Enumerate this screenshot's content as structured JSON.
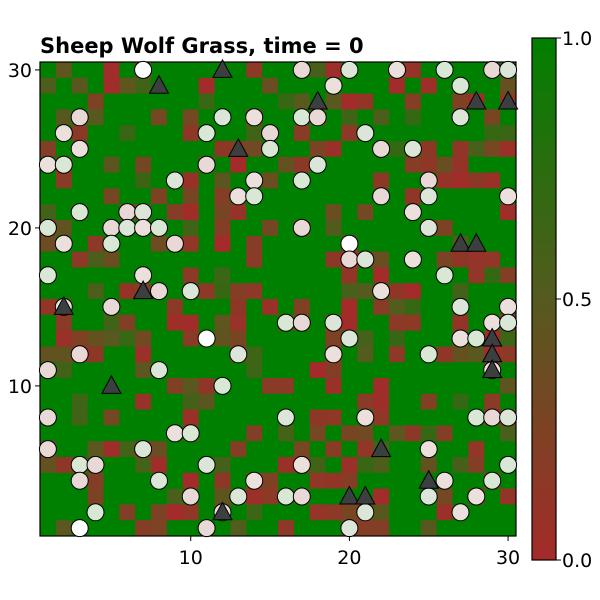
{
  "chart_data": {
    "type": "heatmap",
    "title": "Sheep Wolf Grass, time = 0",
    "xlabel": "",
    "ylabel": "",
    "xlim": [
      0.5,
      30.5
    ],
    "ylim": [
      0.5,
      30.5
    ],
    "x_ticks": [
      "10",
      "20",
      "30"
    ],
    "y_ticks": [
      "10",
      "20",
      "30"
    ],
    "colorbar": {
      "range": [
        0.0,
        1.0
      ],
      "ticks": [
        "0.0",
        "0.5",
        "1.0"
      ],
      "colors": {
        "low": "#a52a2a",
        "high": "#008000"
      }
    },
    "grid": false,
    "grass_grid_size": 30,
    "grass_note_fully_grown_value": 1.0,
    "sheep": [
      [
        7,
        30
      ],
      [
        17,
        30
      ],
      [
        20,
        30
      ],
      [
        23,
        30
      ],
      [
        26,
        30
      ],
      [
        29,
        30
      ],
      [
        30,
        30
      ],
      [
        19,
        29
      ],
      [
        27,
        29
      ],
      [
        3,
        27
      ],
      [
        12,
        27
      ],
      [
        14,
        27
      ],
      [
        17,
        27
      ],
      [
        18,
        27
      ],
      [
        27,
        27
      ],
      [
        2,
        26
      ],
      [
        11,
        26
      ],
      [
        15,
        26
      ],
      [
        21,
        26
      ],
      [
        3,
        25
      ],
      [
        15,
        25
      ],
      [
        22,
        25
      ],
      [
        24,
        25
      ],
      [
        1,
        24
      ],
      [
        2,
        24
      ],
      [
        11,
        24
      ],
      [
        18,
        24
      ],
      [
        14,
        23
      ],
      [
        17,
        23
      ],
      [
        25,
        23
      ],
      [
        9,
        23
      ],
      [
        13,
        22
      ],
      [
        14,
        22
      ],
      [
        22,
        22
      ],
      [
        25,
        22
      ],
      [
        30,
        22
      ],
      [
        3,
        21
      ],
      [
        6,
        21
      ],
      [
        7,
        21
      ],
      [
        24,
        21
      ],
      [
        1,
        20
      ],
      [
        5,
        20
      ],
      [
        6,
        20
      ],
      [
        7,
        20
      ],
      [
        8,
        20
      ],
      [
        17,
        20
      ],
      [
        25,
        20
      ],
      [
        2,
        19
      ],
      [
        5,
        19
      ],
      [
        9,
        19
      ],
      [
        20,
        19
      ],
      [
        7,
        17
      ],
      [
        1,
        17
      ],
      [
        20,
        18
      ],
      [
        21,
        18
      ],
      [
        24,
        18
      ],
      [
        26,
        17
      ],
      [
        8,
        16
      ],
      [
        10,
        16
      ],
      [
        22,
        16
      ],
      [
        2,
        15
      ],
      [
        5,
        15
      ],
      [
        27,
        15
      ],
      [
        30,
        15
      ],
      [
        16,
        14
      ],
      [
        17,
        14
      ],
      [
        19,
        14
      ],
      [
        29,
        14
      ],
      [
        30,
        14
      ],
      [
        11,
        13
      ],
      [
        20,
        13
      ],
      [
        27,
        13
      ],
      [
        28,
        13
      ],
      [
        3,
        12
      ],
      [
        13,
        12
      ],
      [
        19,
        12
      ],
      [
        25,
        12
      ],
      [
        1,
        11
      ],
      [
        8,
        11
      ],
      [
        29,
        11
      ],
      [
        12,
        10
      ],
      [
        1,
        8
      ],
      [
        16,
        8
      ],
      [
        21,
        8
      ],
      [
        28,
        8
      ],
      [
        29,
        8
      ],
      [
        30,
        8
      ],
      [
        9,
        7
      ],
      [
        10,
        7
      ],
      [
        1,
        6
      ],
      [
        7,
        6
      ],
      [
        25,
        6
      ],
      [
        3,
        5
      ],
      [
        4,
        5
      ],
      [
        11,
        5
      ],
      [
        17,
        5
      ],
      [
        30,
        5
      ],
      [
        3,
        4
      ],
      [
        8,
        4
      ],
      [
        26,
        4
      ],
      [
        29,
        4
      ],
      [
        10,
        3
      ],
      [
        13,
        3
      ],
      [
        14,
        4
      ],
      [
        16,
        3
      ],
      [
        17,
        3
      ],
      [
        25,
        3
      ],
      [
        28,
        3
      ],
      [
        4,
        2
      ],
      [
        12,
        2
      ],
      [
        21,
        2
      ],
      [
        27,
        2
      ],
      [
        3,
        1
      ],
      [
        11,
        1
      ],
      [
        20,
        1
      ]
    ],
    "sheep_white": [
      [
        7,
        30
      ],
      [
        11,
        27
      ],
      [
        20,
        19
      ],
      [
        11,
        13
      ],
      [
        3,
        1
      ]
    ],
    "wolves": [
      [
        12,
        30
      ],
      [
        8,
        29
      ],
      [
        18,
        28
      ],
      [
        28,
        28
      ],
      [
        30,
        28
      ],
      [
        13,
        25
      ],
      [
        27,
        19
      ],
      [
        28,
        19
      ],
      [
        2,
        15
      ],
      [
        7,
        16
      ],
      [
        29,
        13
      ],
      [
        29,
        12
      ],
      [
        5,
        10
      ],
      [
        29,
        11
      ],
      [
        22,
        6
      ],
      [
        25,
        4
      ],
      [
        20,
        3
      ],
      [
        21,
        3
      ],
      [
        12,
        2
      ]
    ]
  }
}
